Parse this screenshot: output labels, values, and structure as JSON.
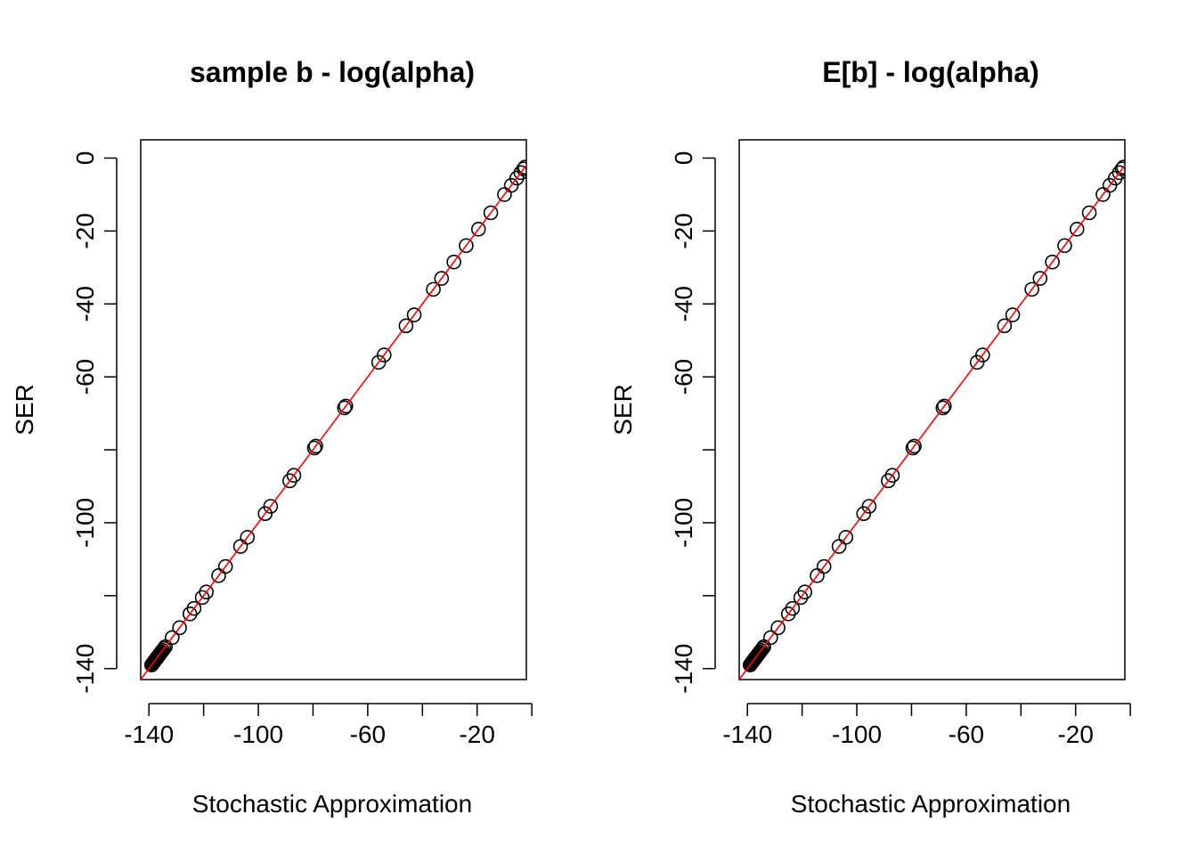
{
  "chart_data": [
    {
      "type": "scatter",
      "title": "sample b - log(alpha)",
      "xlabel": "Stochastic Approximation",
      "ylabel": "SER",
      "xlim": [
        -143,
        -2
      ],
      "ylim": [
        -143,
        5
      ],
      "xticks": [
        -140,
        -120,
        -100,
        -80,
        -60,
        -40,
        -20,
        0
      ],
      "xtick_labels": [
        "-140",
        "",
        "-100",
        "",
        "-60",
        "",
        "-20",
        ""
      ],
      "yticks": [
        -140,
        -120,
        -100,
        -80,
        -60,
        -40,
        -20,
        0
      ],
      "ytick_labels": [
        "-140",
        "",
        "-100",
        "",
        "-60",
        "-40",
        "-20",
        "0"
      ],
      "reference_line": {
        "intercept": 0,
        "slope": 1,
        "color": "#ff0000"
      },
      "point_style": {
        "marker": "open-circle",
        "color": "#000000"
      },
      "grid": false,
      "series": [
        {
          "x": [
            -139,
            -138.7,
            -138.4,
            -138.1,
            -137.8,
            -137.5,
            -137.2,
            -136.9,
            -136.6,
            -136.3,
            -136,
            -135.7,
            -135.4,
            -135,
            -134.5,
            -134,
            -131.5,
            -128.8,
            -125,
            -123.5,
            -120.5,
            -119,
            -114.5,
            -112,
            -106.5,
            -104,
            -97.5,
            -95.5,
            -88.5,
            -87,
            -79.5,
            -79,
            -68.5,
            -68,
            -56,
            -54,
            -46,
            -43,
            -36,
            -33,
            -28.5,
            -24,
            -19.5,
            -15,
            -10,
            -7.5,
            -5.5,
            -4,
            -3,
            -2.5
          ],
          "y": [
            -139,
            -138.7,
            -138.4,
            -138.1,
            -137.8,
            -137.5,
            -137.2,
            -136.9,
            -136.6,
            -136.3,
            -136,
            -135.7,
            -135.4,
            -135,
            -134.5,
            -134,
            -131.5,
            -128.8,
            -125,
            -123.5,
            -120.5,
            -119,
            -114.5,
            -112,
            -106.5,
            -104,
            -97.5,
            -95.5,
            -88.5,
            -87,
            -79.5,
            -79,
            -68.5,
            -68,
            -56,
            -54,
            -46,
            -43,
            -36,
            -33,
            -28.5,
            -24,
            -19.5,
            -15,
            -10,
            -7.5,
            -5.5,
            -4,
            -3,
            -2.5
          ]
        }
      ]
    },
    {
      "type": "scatter",
      "title": "E[b] - log(alpha)",
      "xlabel": "Stochastic Approximation",
      "ylabel": "SER",
      "xlim": [
        -143,
        -2
      ],
      "ylim": [
        -143,
        5
      ],
      "xticks": [
        -140,
        -120,
        -100,
        -80,
        -60,
        -40,
        -20,
        0
      ],
      "xtick_labels": [
        "-140",
        "",
        "-100",
        "",
        "-60",
        "",
        "-20",
        ""
      ],
      "yticks": [
        -140,
        -120,
        -100,
        -80,
        -60,
        -40,
        -20,
        0
      ],
      "ytick_labels": [
        "-140",
        "",
        "-100",
        "",
        "-60",
        "-40",
        "-20",
        "0"
      ],
      "reference_line": {
        "intercept": 0,
        "slope": 1,
        "color": "#ff0000"
      },
      "point_style": {
        "marker": "open-circle",
        "color": "#000000"
      },
      "grid": false,
      "series": [
        {
          "x": [
            -139,
            -138.7,
            -138.4,
            -138.1,
            -137.8,
            -137.5,
            -137.2,
            -136.9,
            -136.6,
            -136.3,
            -136,
            -135.7,
            -135.4,
            -135,
            -134.5,
            -134,
            -131.5,
            -128.8,
            -125,
            -123.5,
            -120.5,
            -119,
            -114.5,
            -112,
            -106.5,
            -104,
            -97.5,
            -95.5,
            -88.5,
            -87,
            -79.5,
            -79,
            -68.5,
            -68,
            -56,
            -54,
            -46,
            -43,
            -36,
            -33,
            -28.5,
            -24,
            -19.5,
            -15,
            -10,
            -7.5,
            -5.5,
            -4,
            -3,
            -2.5
          ],
          "y": [
            -139,
            -138.7,
            -138.4,
            -138.1,
            -137.8,
            -137.5,
            -137.2,
            -136.9,
            -136.6,
            -136.3,
            -136,
            -135.7,
            -135.4,
            -135,
            -134.5,
            -134,
            -131.5,
            -128.8,
            -125,
            -123.5,
            -120.5,
            -119,
            -114.5,
            -112,
            -106.5,
            -104,
            -97.5,
            -95.5,
            -88.5,
            -87,
            -79.5,
            -79,
            -68.5,
            -68,
            -56,
            -54,
            -46,
            -43,
            -36,
            -33,
            -28.5,
            -24,
            -19.5,
            -15,
            -10,
            -7.5,
            -5.5,
            -4,
            -3,
            -2.5
          ]
        }
      ]
    }
  ]
}
